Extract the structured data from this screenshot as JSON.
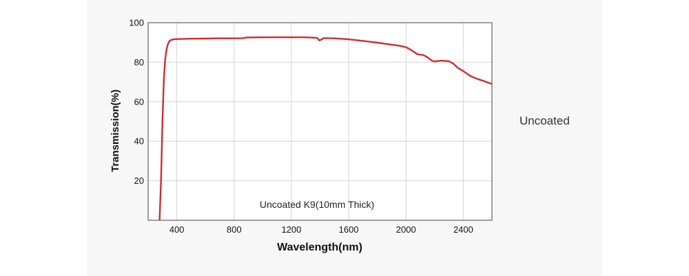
{
  "side_label": "Uncoated",
  "chart_data": {
    "type": "line",
    "title": "",
    "annotation": "Uncoated K9(10mm Thick)",
    "xlabel": "Wavelength(nm)",
    "ylabel": "Transmission(%)",
    "xlim": [
      200,
      2600
    ],
    "ylim": [
      0,
      100
    ],
    "x_ticks": [
      400,
      800,
      1200,
      1600,
      2000,
      2400
    ],
    "y_ticks": [
      20,
      40,
      60,
      80,
      100
    ],
    "grid": true,
    "colors": {
      "line": "#d42a2a",
      "grid": "#d6d6d6",
      "frame": "#444444",
      "plot_bg": "#ffffff"
    },
    "series": [
      {
        "x": [
          280,
          290,
          300,
          310,
          320,
          330,
          340,
          350,
          360,
          380,
          400,
          500,
          600,
          700,
          800,
          870,
          880,
          1000,
          1100,
          1200,
          1300,
          1380,
          1395,
          1410,
          1425,
          1450,
          1500,
          1600,
          1700,
          1800,
          1900,
          1950,
          2000,
          2040,
          2080,
          2120,
          2150,
          2180,
          2200,
          2220,
          2250,
          2300,
          2330,
          2360,
          2400,
          2450,
          2500,
          2550,
          2600
        ],
        "y": [
          0,
          20,
          50,
          72,
          82,
          87,
          89.5,
          90.8,
          91.3,
          91.6,
          91.7,
          91.9,
          92.0,
          92.1,
          92.1,
          92.2,
          92.5,
          92.6,
          92.6,
          92.6,
          92.6,
          92.3,
          91.0,
          91.5,
          92.2,
          92.2,
          92.1,
          91.6,
          90.8,
          89.9,
          88.9,
          88.4,
          87.6,
          86.0,
          84.0,
          83.7,
          82.5,
          80.8,
          80.4,
          80.6,
          80.8,
          80.5,
          79.3,
          77.2,
          75.5,
          73.0,
          71.5,
          70.3,
          69.0
        ]
      }
    ]
  }
}
